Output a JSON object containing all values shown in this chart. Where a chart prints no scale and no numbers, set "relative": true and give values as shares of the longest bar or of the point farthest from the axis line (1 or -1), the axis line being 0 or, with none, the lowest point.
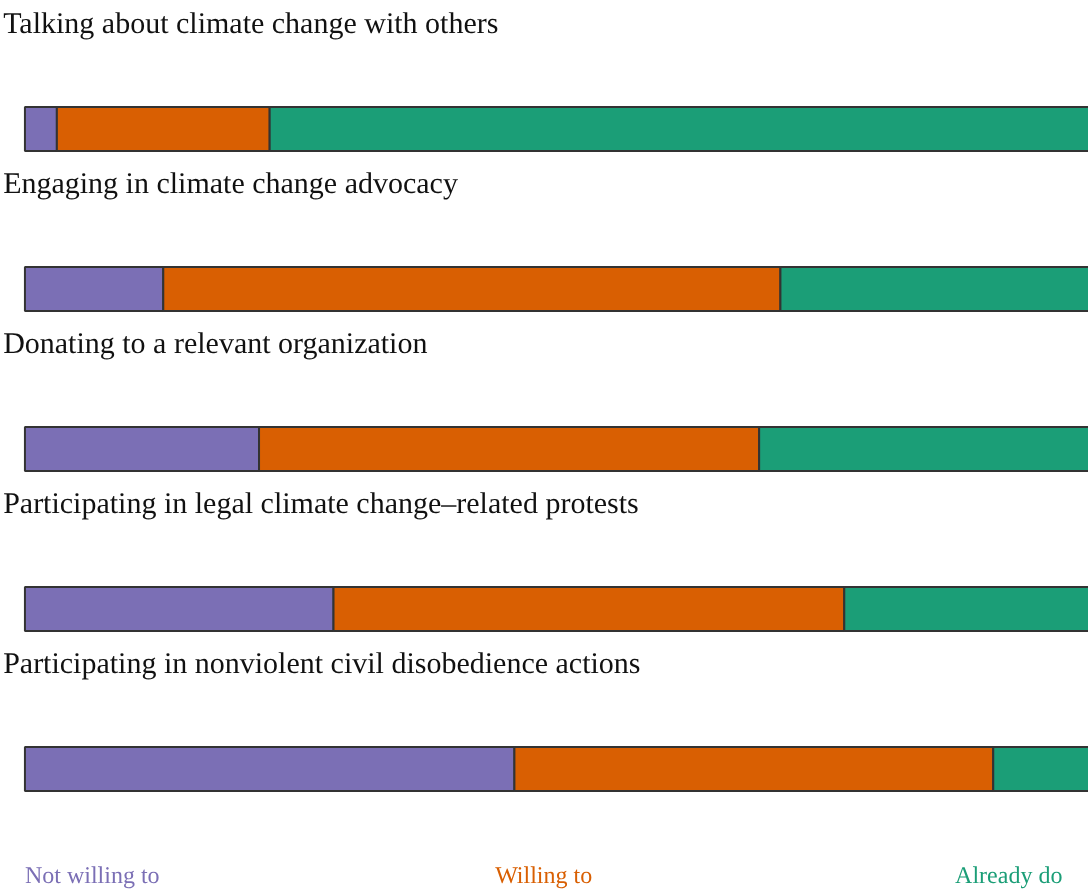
{
  "chart_data": {
    "type": "bar",
    "orientation": "horizontal",
    "stacked": true,
    "relative": true,
    "legend": "bottom",
    "categories": [
      "Talking about climate change with others",
      "Engaging in climate change advocacy",
      "Donating to a relevant organization",
      "Participating in legal climate change–related protests",
      "Participating in nonviolent civil disobedience actions"
    ],
    "series": [
      {
        "name": "Not willing to",
        "color": "#7b6fb5",
        "values": [
          0.03,
          0.13,
          0.22,
          0.29,
          0.46
        ]
      },
      {
        "name": "Willing to",
        "color": "#d95f02",
        "values": [
          0.2,
          0.58,
          0.47,
          0.48,
          0.45
        ]
      },
      {
        "name": "Already do",
        "color": "#1b9e77",
        "values": [
          0.77,
          0.29,
          0.31,
          0.23,
          0.09
        ]
      }
    ]
  }
}
